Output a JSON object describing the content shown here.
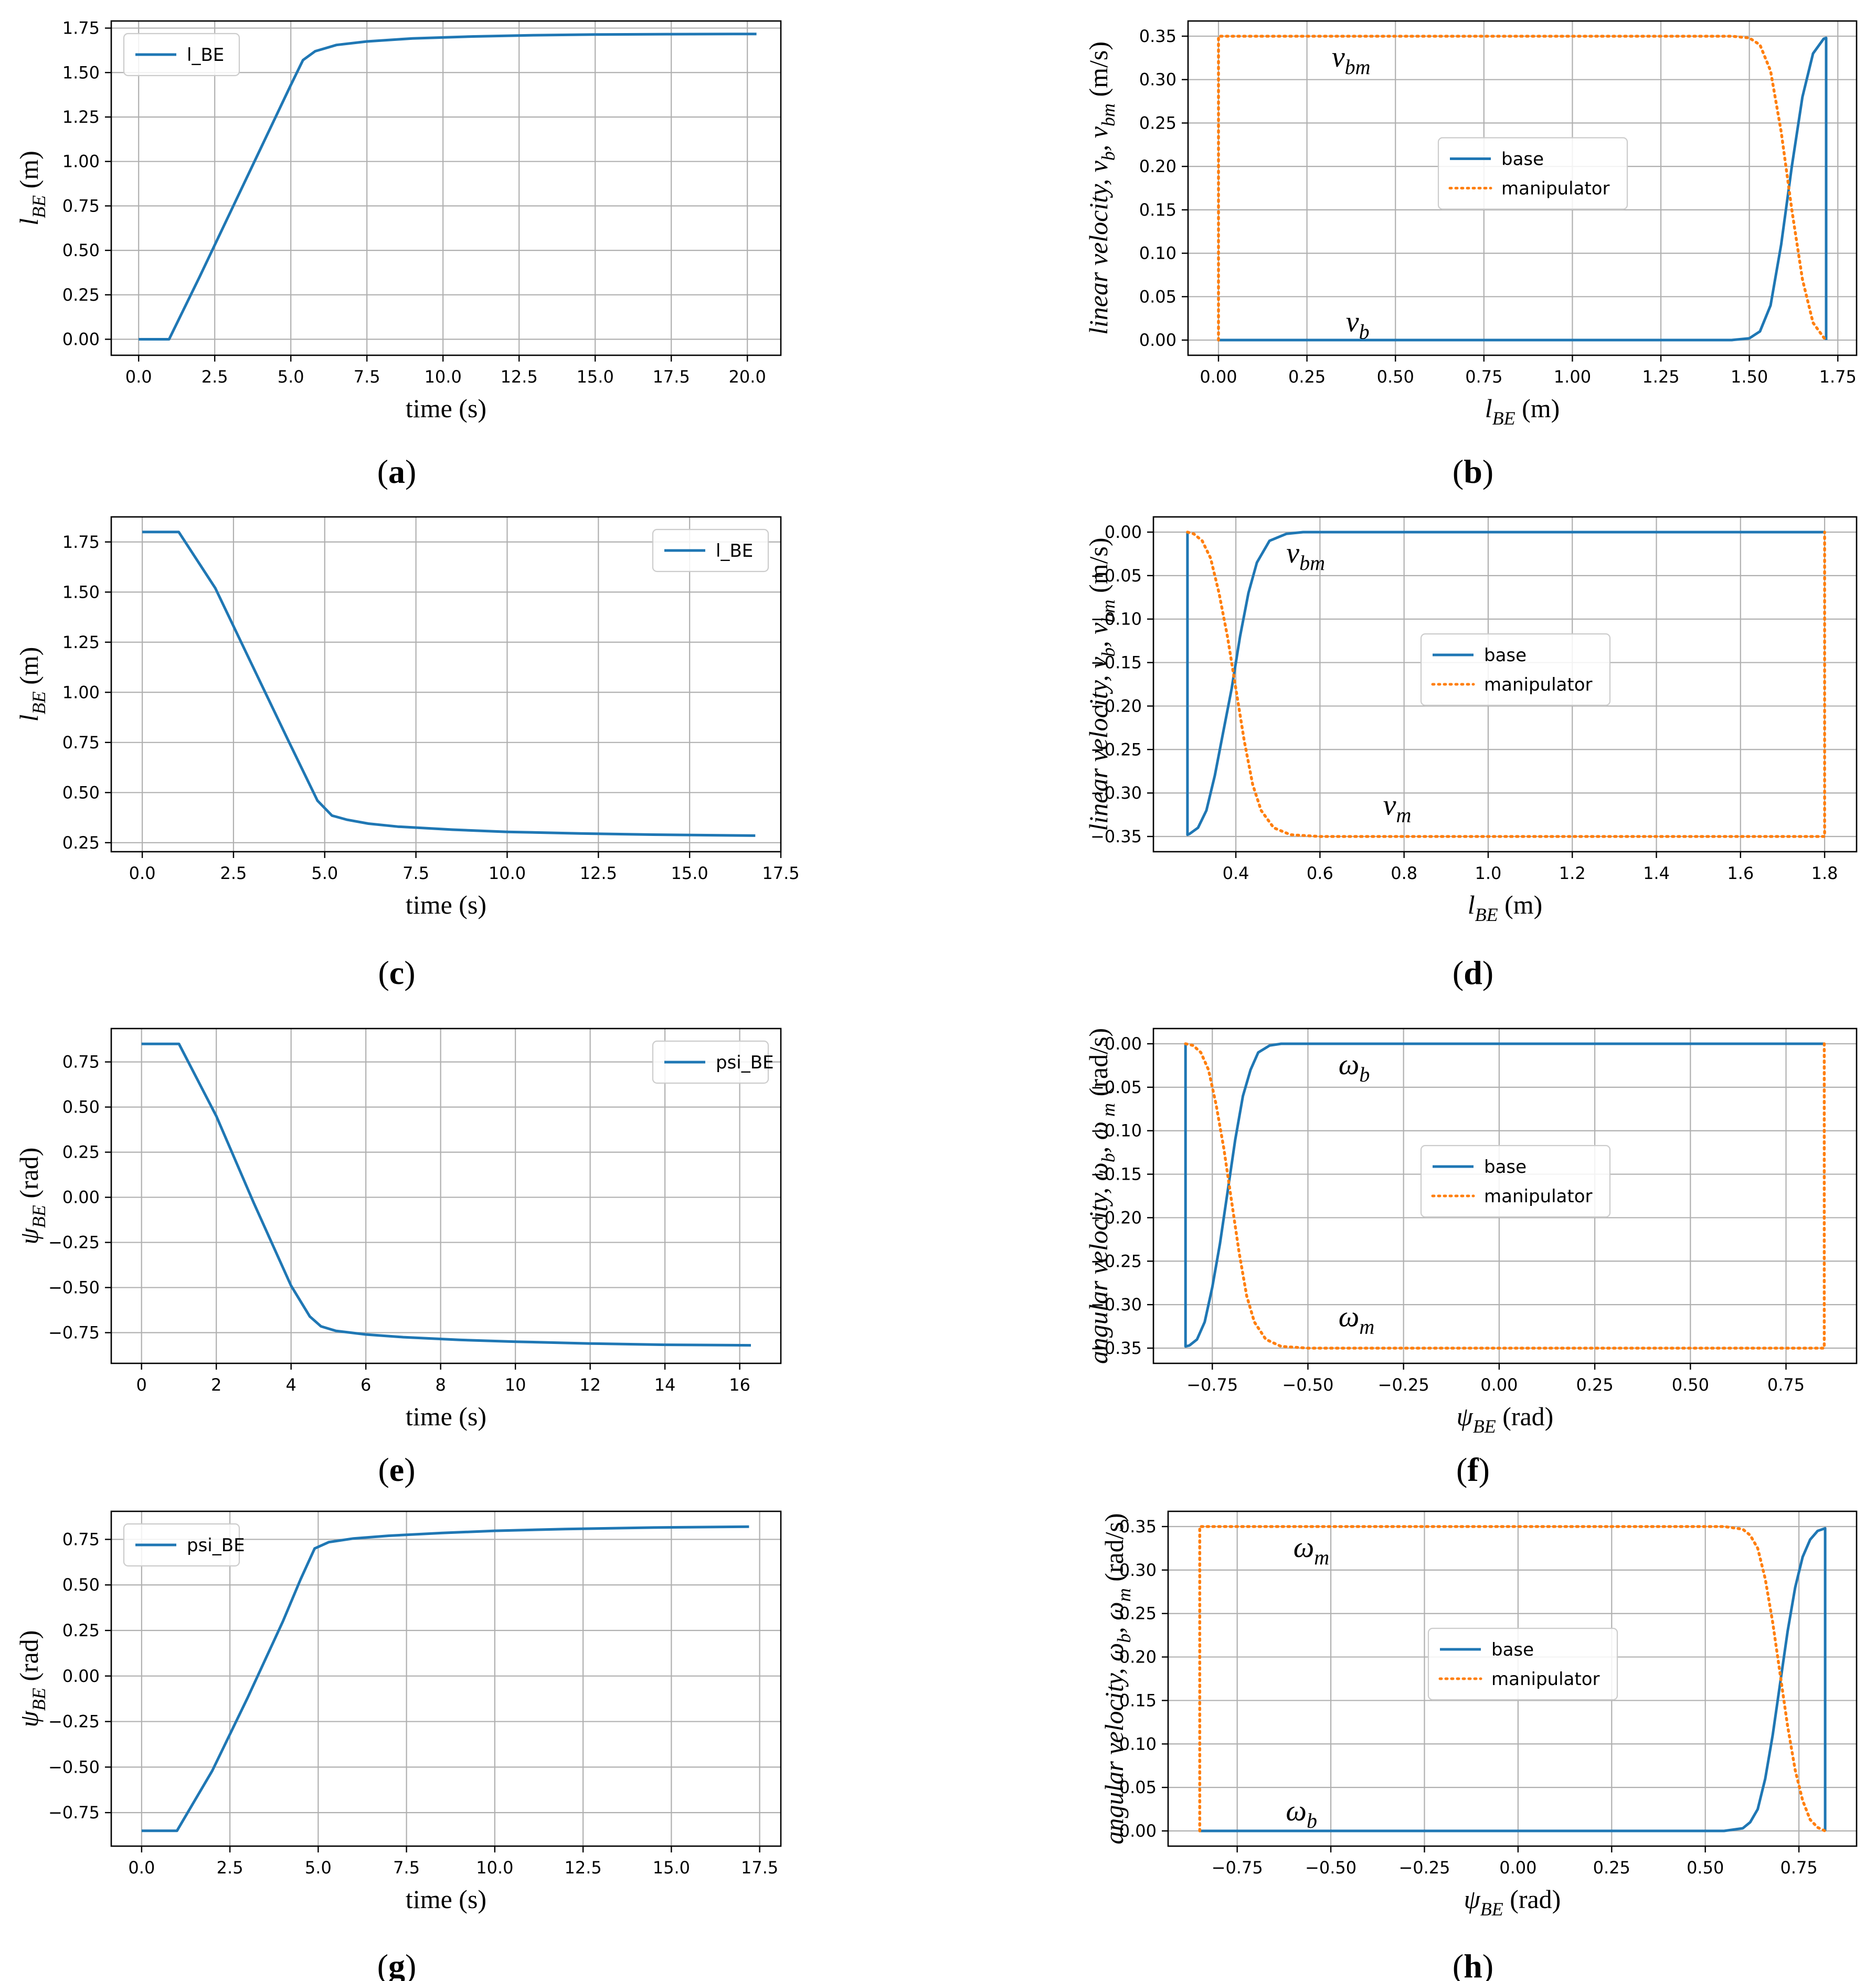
{
  "colors": {
    "base": "#1f77b4",
    "manipulator": "#ff7f0e",
    "grid": "#b0b0b0"
  },
  "chart_data": [
    {
      "panel": "a",
      "subcaption": "(a)",
      "type": "line",
      "title": "",
      "xlabel": "time (s)",
      "ylabel": "l_BE (m)",
      "ylabel_main": "l",
      "ylabel_sub": "BE",
      "ylabel_unit": " (m)",
      "xlim": [
        -0.9,
        21.1
      ],
      "ylim": [
        -0.09,
        1.79
      ],
      "xticks": [
        0,
        2.5,
        5,
        7.5,
        10,
        12.5,
        15,
        17.5,
        20
      ],
      "xtick_labels": [
        "0.0",
        "2.5",
        "5.0",
        "7.5",
        "10.0",
        "12.5",
        "15.0",
        "17.5",
        "20.0"
      ],
      "yticks": [
        0,
        0.25,
        0.5,
        0.75,
        1,
        1.25,
        1.5,
        1.75
      ],
      "ytick_labels": [
        "0.00",
        "0.25",
        "0.50",
        "0.75",
        "1.00",
        "1.25",
        "1.50",
        "1.75"
      ],
      "grid": true,
      "legend": "top-left",
      "series": [
        {
          "name": "l_BE",
          "style": "solid",
          "color": "#1f77b4",
          "x": [
            0,
            1.0,
            2.0,
            3.0,
            4.0,
            5.0,
            5.4,
            5.8,
            6.5,
            7.5,
            9.0,
            11.0,
            13.0,
            15.0,
            17.5,
            20.3
          ],
          "y": [
            0,
            0,
            0.35,
            0.71,
            1.07,
            1.43,
            1.57,
            1.62,
            1.655,
            1.675,
            1.692,
            1.703,
            1.71,
            1.714,
            1.716,
            1.717
          ]
        }
      ]
    },
    {
      "panel": "b",
      "subcaption": "(b)",
      "type": "line",
      "title": "",
      "xlabel": "l_BE (m)",
      "ylabel": "linear velocity, v_b, v_bm (m/s)",
      "xlabel_main": "l",
      "xlabel_sub": "BE",
      "xlabel_unit": " (m)",
      "ylabel_parts": [
        [
          "linear velocity, v",
          ""
        ],
        [
          "b",
          "sub"
        ],
        [
          ", v",
          ""
        ],
        [
          "bm",
          "sub"
        ],
        [
          " (m/s)",
          "upright"
        ]
      ],
      "xlim": [
        -0.086,
        1.803
      ],
      "ylim": [
        -0.0175,
        0.3675
      ],
      "xticks": [
        0,
        0.25,
        0.5,
        0.75,
        1,
        1.25,
        1.5,
        1.75
      ],
      "xtick_labels": [
        "0.00",
        "0.25",
        "0.50",
        "0.75",
        "1.00",
        "1.25",
        "1.50",
        "1.75"
      ],
      "yticks": [
        0,
        0.05,
        0.1,
        0.15,
        0.2,
        0.25,
        0.3,
        0.35
      ],
      "ytick_labels": [
        "0.00",
        "0.05",
        "0.10",
        "0.15",
        "0.20",
        "0.25",
        "0.30",
        "0.35"
      ],
      "grid": true,
      "legend": "center",
      "annotations": [
        {
          "main": "v",
          "sub": "bm",
          "x": 0.32,
          "y": 0.315
        },
        {
          "main": "v",
          "sub": "b",
          "x": 0.36,
          "y": 0.01
        }
      ],
      "series": [
        {
          "name": "base",
          "style": "solid",
          "color": "#1f77b4",
          "x": [
            0,
            1.45,
            1.5,
            1.53,
            1.56,
            1.59,
            1.62,
            1.65,
            1.68,
            1.71,
            1.717,
            1.717
          ],
          "y": [
            0,
            0,
            0.002,
            0.01,
            0.04,
            0.11,
            0.2,
            0.28,
            0.33,
            0.347,
            0.348,
            0
          ]
        },
        {
          "name": "manipulator",
          "style": "dotted",
          "color": "#ff7f0e",
          "x": [
            0,
            0,
            1.45,
            1.5,
            1.53,
            1.56,
            1.59,
            1.62,
            1.65,
            1.68,
            1.71,
            1.717
          ],
          "y": [
            0,
            0.35,
            0.35,
            0.348,
            0.34,
            0.31,
            0.24,
            0.15,
            0.07,
            0.02,
            0.003,
            0
          ]
        }
      ]
    },
    {
      "panel": "c",
      "subcaption": "(c)",
      "type": "line",
      "title": "",
      "xlabel": "time (s)",
      "ylabel": "l_BE (m)",
      "ylabel_main": "l",
      "ylabel_sub": "BE",
      "ylabel_unit": " (m)",
      "xlim": [
        -0.85,
        17.5
      ],
      "ylim": [
        0.205,
        1.875
      ],
      "xticks": [
        0,
        2.5,
        5,
        7.5,
        10,
        12.5,
        15,
        17.5
      ],
      "xtick_labels": [
        "0.0",
        "2.5",
        "5.0",
        "7.5",
        "10.0",
        "12.5",
        "15.0",
        "17.5"
      ],
      "yticks": [
        0.25,
        0.5,
        0.75,
        1,
        1.25,
        1.5,
        1.75
      ],
      "ytick_labels": [
        "0.25",
        "0.50",
        "0.75",
        "1.00",
        "1.25",
        "1.50",
        "1.75"
      ],
      "grid": true,
      "legend": "top-right",
      "series": [
        {
          "name": "l_BE",
          "style": "solid",
          "color": "#1f77b4",
          "x": [
            0,
            1.0,
            2.0,
            3.0,
            4.0,
            4.8,
            5.2,
            5.6,
            6.2,
            7.0,
            8.5,
            10.0,
            12.0,
            14.0,
            16.8
          ],
          "y": [
            1.8,
            1.8,
            1.52,
            1.14,
            0.76,
            0.46,
            0.385,
            0.365,
            0.345,
            0.33,
            0.315,
            0.304,
            0.296,
            0.29,
            0.285
          ]
        }
      ]
    },
    {
      "panel": "d",
      "subcaption": "(d)",
      "type": "line",
      "title": "",
      "xlabel": "l_BE (m)",
      "ylabel": "linear velocity, v_b, v_bm (m/s)",
      "xlabel_main": "l",
      "xlabel_sub": "BE",
      "xlabel_unit": " (m)",
      "ylabel_parts": [
        [
          "linear velocity, v",
          ""
        ],
        [
          "b",
          "sub"
        ],
        [
          ", v",
          ""
        ],
        [
          "bm",
          "sub"
        ],
        [
          " (m/s)",
          "upright"
        ]
      ],
      "xlim": [
        0.204,
        1.876
      ],
      "ylim": [
        -0.3675,
        0.0175
      ],
      "xticks": [
        0.4,
        0.6,
        0.8,
        1.0,
        1.2,
        1.4,
        1.6,
        1.8
      ],
      "xtick_labels": [
        "0.4",
        "0.6",
        "0.8",
        "1.0",
        "1.2",
        "1.4",
        "1.6",
        "1.8"
      ],
      "yticks": [
        -0.35,
        -0.3,
        -0.25,
        -0.2,
        -0.15,
        -0.1,
        -0.05,
        0
      ],
      "ytick_labels": [
        "−0.35",
        "−0.30",
        "−0.25",
        "−0.20",
        "−0.15",
        "−0.10",
        "−0.05",
        "0.00"
      ],
      "grid": true,
      "legend": "center",
      "annotations": [
        {
          "main": "v",
          "sub": "bm",
          "x": 0.52,
          "y": -0.035
        },
        {
          "main": "v",
          "sub": "m",
          "x": 0.75,
          "y": -0.325
        }
      ],
      "series": [
        {
          "name": "base",
          "style": "solid",
          "color": "#1f77b4",
          "x": [
            0.285,
            0.285,
            0.29,
            0.31,
            0.33,
            0.35,
            0.37,
            0.39,
            0.41,
            0.43,
            0.45,
            0.48,
            0.52,
            0.56,
            1.8
          ],
          "y": [
            0,
            -0.348,
            -0.347,
            -0.34,
            -0.32,
            -0.28,
            -0.23,
            -0.18,
            -0.12,
            -0.07,
            -0.035,
            -0.01,
            -0.002,
            0,
            0
          ]
        },
        {
          "name": "manipulator",
          "style": "dotted",
          "color": "#ff7f0e",
          "x": [
            0.285,
            0.3,
            0.32,
            0.34,
            0.36,
            0.38,
            0.4,
            0.42,
            0.44,
            0.46,
            0.49,
            0.53,
            0.6,
            1.8,
            1.8
          ],
          "y": [
            0,
            -0.002,
            -0.01,
            -0.03,
            -0.07,
            -0.12,
            -0.18,
            -0.24,
            -0.29,
            -0.32,
            -0.34,
            -0.348,
            -0.35,
            -0.35,
            0
          ]
        }
      ]
    },
    {
      "panel": "e",
      "subcaption": "(e)",
      "type": "line",
      "title": "",
      "xlabel": "time (s)",
      "ylabel": "ψ_BE (rad)",
      "ylabel_main": "ψ",
      "ylabel_sub": "BE",
      "ylabel_unit": " (rad)",
      "xlim": [
        -0.81,
        17.1
      ],
      "ylim": [
        -0.92,
        0.935
      ],
      "xticks": [
        0,
        2,
        4,
        6,
        8,
        10,
        12,
        14,
        16
      ],
      "xtick_labels": [
        "0",
        "2",
        "4",
        "6",
        "8",
        "10",
        "12",
        "14",
        "16"
      ],
      "yticks": [
        -0.75,
        -0.5,
        -0.25,
        0,
        0.25,
        0.5,
        0.75
      ],
      "ytick_labels": [
        "−0.75",
        "−0.50",
        "−0.25",
        "0.00",
        "0.25",
        "0.50",
        "0.75"
      ],
      "grid": true,
      "legend": "top-right",
      "series": [
        {
          "name": "psi_BE",
          "style": "solid",
          "color": "#1f77b4",
          "x": [
            0,
            1.0,
            2.0,
            3.0,
            4.0,
            4.5,
            4.8,
            5.2,
            6.0,
            7.0,
            8.5,
            10.0,
            12.0,
            14.0,
            16.3
          ],
          "y": [
            0.85,
            0.85,
            0.45,
            -0.03,
            -0.49,
            -0.66,
            -0.715,
            -0.74,
            -0.76,
            -0.775,
            -0.79,
            -0.8,
            -0.81,
            -0.817,
            -0.82
          ]
        }
      ]
    },
    {
      "panel": "f",
      "subcaption": "(f)",
      "type": "line",
      "title": "",
      "xlabel": "ψ_BE (rad)",
      "ylabel": "angular velocity, ω_b, ω_m (rad/s)",
      "xlabel_main": "ψ",
      "xlabel_sub": "BE",
      "xlabel_unit": " (rad)",
      "ylabel_parts": [
        [
          "angular velocity, ω",
          ""
        ],
        [
          "b",
          "sub"
        ],
        [
          ", ω",
          ""
        ],
        [
          " m",
          "sub"
        ],
        [
          " (rad/s)",
          "upright"
        ]
      ],
      "xlim": [
        -0.904,
        0.9345
      ],
      "ylim": [
        -0.3675,
        0.0175
      ],
      "xticks": [
        -0.75,
        -0.5,
        -0.25,
        0,
        0.25,
        0.5,
        0.75
      ],
      "xtick_labels": [
        "−0.75",
        "−0.50",
        "−0.25",
        "0.00",
        "0.25",
        "0.50",
        "0.75"
      ],
      "yticks": [
        -0.35,
        -0.3,
        -0.25,
        -0.2,
        -0.15,
        -0.1,
        -0.05,
        0
      ],
      "ytick_labels": [
        "−0.35",
        "−0.30",
        "−0.25",
        "−0.20",
        "−0.15",
        "−0.10",
        "−0.05",
        "0.00"
      ],
      "grid": true,
      "legend": "center",
      "annotations": [
        {
          "main": "ω",
          "sub": "b",
          "x": -0.42,
          "y": -0.035
        },
        {
          "main": "ω",
          "sub": "m",
          "x": -0.42,
          "y": -0.325
        }
      ],
      "series": [
        {
          "name": "base",
          "style": "solid",
          "color": "#1f77b4",
          "x": [
            -0.82,
            -0.82,
            -0.81,
            -0.79,
            -0.77,
            -0.75,
            -0.73,
            -0.71,
            -0.69,
            -0.67,
            -0.65,
            -0.63,
            -0.6,
            -0.57,
            0.85
          ],
          "y": [
            0,
            -0.348,
            -0.347,
            -0.34,
            -0.32,
            -0.28,
            -0.23,
            -0.17,
            -0.11,
            -0.06,
            -0.03,
            -0.01,
            -0.002,
            0,
            0
          ]
        },
        {
          "name": "manipulator",
          "style": "dotted",
          "color": "#ff7f0e",
          "x": [
            -0.82,
            -0.8,
            -0.78,
            -0.76,
            -0.74,
            -0.72,
            -0.7,
            -0.68,
            -0.66,
            -0.64,
            -0.61,
            -0.57,
            -0.5,
            0.85,
            0.85
          ],
          "y": [
            0,
            -0.002,
            -0.01,
            -0.03,
            -0.07,
            -0.12,
            -0.18,
            -0.24,
            -0.29,
            -0.32,
            -0.34,
            -0.348,
            -0.35,
            -0.35,
            0
          ]
        }
      ]
    },
    {
      "panel": "g",
      "subcaption": "(g)",
      "type": "line",
      "title": "",
      "xlabel": "time (s)",
      "ylabel": "ψ_BE (rad)",
      "ylabel_main": "ψ",
      "ylabel_sub": "BE",
      "ylabel_unit": " (rad)",
      "xlim": [
        -0.86,
        18.1
      ],
      "ylim": [
        -0.934,
        0.904
      ],
      "xticks": [
        0,
        2.5,
        5,
        7.5,
        10,
        12.5,
        15,
        17.5
      ],
      "xtick_labels": [
        "0.0",
        "2.5",
        "5.0",
        "7.5",
        "10.0",
        "12.5",
        "15.0",
        "17.5"
      ],
      "yticks": [
        -0.75,
        -0.5,
        -0.25,
        0,
        0.25,
        0.5,
        0.75
      ],
      "ytick_labels": [
        "−0.75",
        "−0.50",
        "−0.25",
        "0.00",
        "0.25",
        "0.50",
        "0.75"
      ],
      "grid": true,
      "legend": "top-left",
      "series": [
        {
          "name": "psi_BE",
          "style": "solid",
          "color": "#1f77b4",
          "x": [
            0,
            1.0,
            2.0,
            3.0,
            4.0,
            4.5,
            4.9,
            5.3,
            6.0,
            7.0,
            8.5,
            10.0,
            12.0,
            14.5,
            17.2
          ],
          "y": [
            -0.85,
            -0.85,
            -0.52,
            -0.12,
            0.3,
            0.53,
            0.7,
            0.735,
            0.755,
            0.77,
            0.785,
            0.797,
            0.807,
            0.815,
            0.82
          ]
        }
      ]
    },
    {
      "panel": "h",
      "subcaption": "(h)",
      "type": "line",
      "title": "",
      "xlabel": "ψ_BE (rad)",
      "ylabel": "angular velocity, ω_b, ω_m (rad/s)",
      "xlabel_main": "ψ",
      "xlabel_sub": "BE",
      "xlabel_unit": " (rad)",
      "ylabel_parts": [
        [
          "angular velocity, ω",
          ""
        ],
        [
          "b",
          "sub"
        ],
        [
          ", ω",
          ""
        ],
        [
          "m",
          "sub"
        ],
        [
          " (rad/s)",
          "upright"
        ]
      ],
      "xlim": [
        -0.9345,
        0.904
      ],
      "ylim": [
        -0.0175,
        0.3675
      ],
      "xticks": [
        -0.75,
        -0.5,
        -0.25,
        0,
        0.25,
        0.5,
        0.75
      ],
      "xtick_labels": [
        "−0.75",
        "−0.50",
        "−0.25",
        "0.00",
        "0.25",
        "0.50",
        "0.75"
      ],
      "yticks": [
        0,
        0.05,
        0.1,
        0.15,
        0.2,
        0.25,
        0.3,
        0.35
      ],
      "ytick_labels": [
        "0.00",
        "0.05",
        "0.10",
        "0.15",
        "0.20",
        "0.25",
        "0.30",
        "0.35"
      ],
      "grid": true,
      "legend": "center",
      "annotations": [
        {
          "main": "ω",
          "sub": "m",
          "x": -0.6,
          "y": 0.315
        },
        {
          "main": "ω",
          "sub": "b",
          "x": -0.62,
          "y": 0.012
        }
      ],
      "series": [
        {
          "name": "base",
          "style": "solid",
          "color": "#1f77b4",
          "x": [
            -0.85,
            0.55,
            0.6,
            0.62,
            0.64,
            0.66,
            0.68,
            0.7,
            0.72,
            0.74,
            0.76,
            0.78,
            0.8,
            0.82,
            0.82
          ],
          "y": [
            0,
            0,
            0.003,
            0.01,
            0.025,
            0.06,
            0.11,
            0.17,
            0.23,
            0.28,
            0.315,
            0.335,
            0.345,
            0.348,
            0
          ]
        },
        {
          "name": "manipulator",
          "style": "dotted",
          "color": "#ff7f0e",
          "x": [
            -0.85,
            -0.85,
            0.55,
            0.6,
            0.62,
            0.64,
            0.66,
            0.68,
            0.7,
            0.72,
            0.74,
            0.76,
            0.78,
            0.8,
            0.82
          ],
          "y": [
            0,
            0.35,
            0.35,
            0.347,
            0.34,
            0.325,
            0.29,
            0.24,
            0.18,
            0.12,
            0.07,
            0.035,
            0.013,
            0.004,
            0
          ]
        }
      ]
    }
  ]
}
